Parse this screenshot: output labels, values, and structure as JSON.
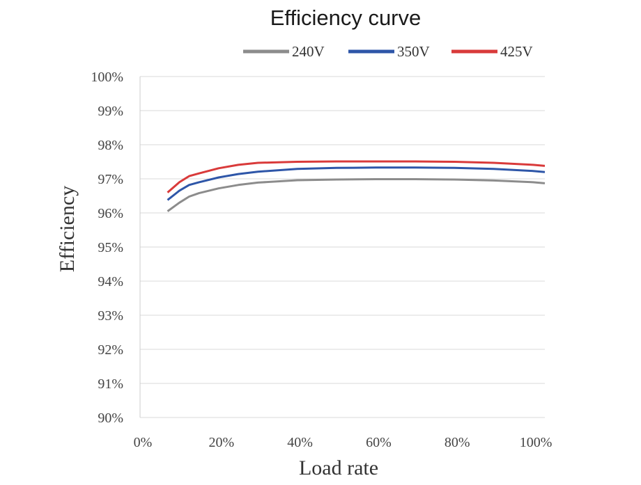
{
  "chart_data": {
    "type": "line",
    "title": "Efficiency curve",
    "xlabel": "Load rate",
    "ylabel": "Efficiency",
    "xlim": [
      0,
      1.03
    ],
    "ylim": [
      90,
      100
    ],
    "x_ticks": [
      "0%",
      "20%",
      "40%",
      "60%",
      "80%",
      "100%"
    ],
    "y_ticks": [
      "90%",
      "91%",
      "92%",
      "93%",
      "94%",
      "95%",
      "96%",
      "97%",
      "98%",
      "99%",
      "100%"
    ],
    "grid": true,
    "legend_position": "top",
    "x": [
      0.07,
      0.1,
      0.125,
      0.15,
      0.2,
      0.25,
      0.3,
      0.4,
      0.5,
      0.6,
      0.7,
      0.8,
      0.9,
      1.0,
      1.03
    ],
    "series": [
      {
        "name": "240V",
        "color": "#8c8c8c",
        "values": [
          96.05,
          96.3,
          96.48,
          96.58,
          96.72,
          96.82,
          96.89,
          96.96,
          96.98,
          96.99,
          96.99,
          96.98,
          96.95,
          96.9,
          96.87
        ]
      },
      {
        "name": "350V",
        "color": "#2e56a8",
        "values": [
          96.38,
          96.65,
          96.82,
          96.9,
          97.04,
          97.14,
          97.21,
          97.29,
          97.32,
          97.33,
          97.33,
          97.32,
          97.29,
          97.23,
          97.2
        ]
      },
      {
        "name": "425V",
        "color": "#d93a3a",
        "values": [
          96.6,
          96.9,
          97.08,
          97.16,
          97.31,
          97.41,
          97.47,
          97.5,
          97.51,
          97.51,
          97.51,
          97.5,
          97.47,
          97.41,
          97.38
        ]
      }
    ]
  }
}
